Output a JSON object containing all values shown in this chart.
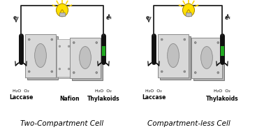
{
  "title_left": "Two-Compartment Cell",
  "title_right": "Compartment-less Cell",
  "label_laccase": "Laccase",
  "label_nafion": "Nafion",
  "label_thylakoids": "Thylakoids",
  "label_h2o_o2_left": "H₂O  O₂",
  "label_h2o_o2_right": "H₂O  O₂",
  "label_eminus": "e⁻",
  "bg_color": "#ffffff",
  "cell_color": "#d8d8d8",
  "cell_edge": "#888888",
  "electrode_color": "#111111",
  "green_color": "#22aa22",
  "wire_color": "#222222",
  "bulb_yellow": "#FFE000",
  "back_color": "#b0b0b0"
}
